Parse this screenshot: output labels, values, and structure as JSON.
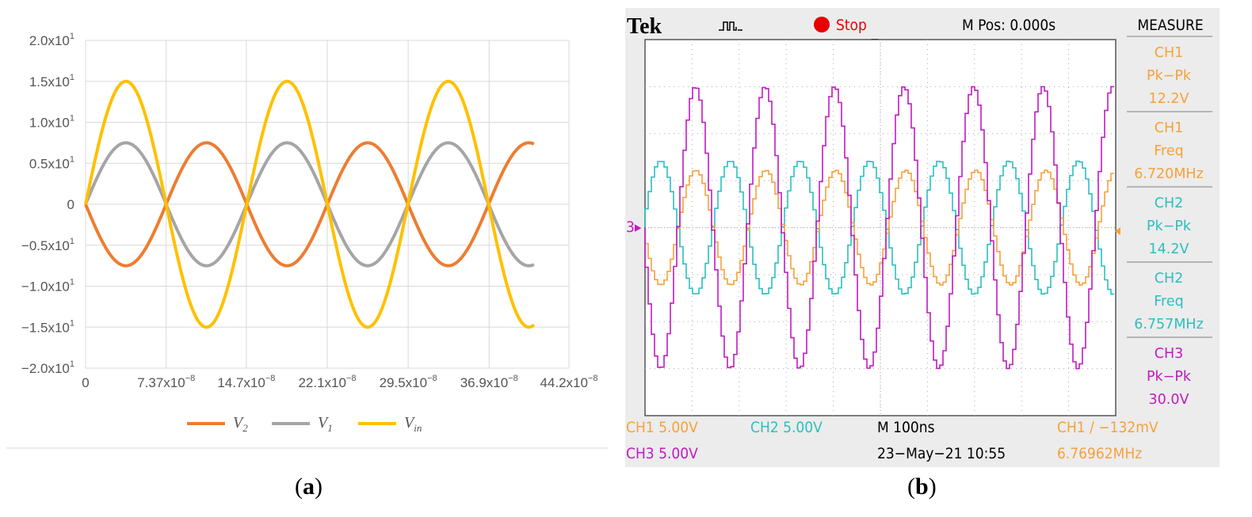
{
  "panels": {
    "a": {
      "caption_letter": "a"
    },
    "b": {
      "caption_letter": "b"
    }
  },
  "chart_data": [
    {
      "type": "line",
      "panel": "a",
      "x_range": [
        0,
        4.1e-07
      ],
      "xlim": [
        0,
        4.42e-07
      ],
      "ylim": [
        -20,
        20
      ],
      "grid": true,
      "legend_position": "bottom",
      "y_ticks": [
        {
          "value": 20,
          "mant": "2.0x10",
          "exp": "1"
        },
        {
          "value": 15,
          "mant": "1.5x10",
          "exp": "1"
        },
        {
          "value": 10,
          "mant": "1.0x10",
          "exp": "1"
        },
        {
          "value": 5,
          "mant": "0.5x10",
          "exp": "1"
        },
        {
          "value": 0,
          "mant": "0",
          "exp": ""
        },
        {
          "value": -5,
          "mant": "−0.5x10",
          "exp": "1"
        },
        {
          "value": -10,
          "mant": "−1.0x10",
          "exp": "1"
        },
        {
          "value": -15,
          "mant": "−1.5x10",
          "exp": "1"
        },
        {
          "value": -20,
          "mant": "−2.0x10",
          "exp": "1"
        }
      ],
      "x_ticks": [
        {
          "value": 0,
          "mant": "0",
          "exp": ""
        },
        {
          "value": 7.37e-08,
          "mant": "7.37x10",
          "exp": "−8"
        },
        {
          "value": 1.47e-07,
          "mant": "14.7x10",
          "exp": "−8"
        },
        {
          "value": 2.21e-07,
          "mant": "22.1x10",
          "exp": "−8"
        },
        {
          "value": 2.95e-07,
          "mant": "29.5x10",
          "exp": "−8"
        },
        {
          "value": 3.69e-07,
          "mant": "36.9x10",
          "exp": "−8"
        },
        {
          "value": 4.42e-07,
          "mant": "44.2x10",
          "exp": "−8"
        }
      ],
      "series": [
        {
          "name": "V",
          "subscript": "2",
          "color": "#ed7d31",
          "amplitude": -7.5,
          "period": 1.474e-07
        },
        {
          "name": "V",
          "subscript": "1",
          "color": "#a5a5a5",
          "amplitude": 7.5,
          "period": 1.474e-07
        },
        {
          "name": "V",
          "subscript": "in",
          "color": "#ffc000",
          "amplitude": 15,
          "period": 1.474e-07
        }
      ]
    },
    {
      "type": "line",
      "panel": "b",
      "divisions_x": 10,
      "divisions_y": 8,
      "grid": true,
      "series": [
        {
          "name": "CH1",
          "color": "#f7a13a",
          "amplitude_div": 1.22,
          "offset_div": 0,
          "period_div": 1.488,
          "phase": 3.14
        },
        {
          "name": "CH2",
          "color": "#2bbfbf",
          "amplitude_div": 1.42,
          "offset_div": 0,
          "period_div": 1.48,
          "phase": 0.0
        },
        {
          "name": "CH3",
          "color": "#c21ac2",
          "amplitude_div": 3.0,
          "offset_div": 0,
          "period_div": 1.477,
          "phase": 3.14
        }
      ]
    }
  ],
  "scope": {
    "logo": "Tek",
    "acq_label": "Stop",
    "mpos": "M Pos: 0.000s",
    "menu_title": "MEASURE",
    "channel_marker": "3",
    "colors": {
      "ch1": "#f7a13a",
      "ch2": "#2bbfbf",
      "ch3": "#c21ac2",
      "stop": "#e60000"
    },
    "measurements": [
      {
        "ch": "CH1",
        "type": "Pk−Pk",
        "value": "12.2V",
        "color": "#f7a13a"
      },
      {
        "ch": "CH1",
        "type": "Freq",
        "value": "6.720MHz",
        "color": "#f7a13a"
      },
      {
        "ch": "CH2",
        "type": "Pk−Pk",
        "value": "14.2V",
        "color": "#2bbfbf"
      },
      {
        "ch": "CH2",
        "type": "Freq",
        "value": "6.757MHz",
        "color": "#2bbfbf"
      },
      {
        "ch": "CH3",
        "type": "Pk−Pk",
        "value": "30.0V",
        "color": "#c21ac2"
      }
    ],
    "status": {
      "ch1_scale": "CH1  5.00V",
      "ch2_scale": "CH2  5.00V",
      "ch3_scale": "CH3  5.00V",
      "timebase": "M 100ns",
      "timestamp": "23−May−21 10:55",
      "trigger": "CH1 ∕ −132mV",
      "trigger_freq": "6.76962MHz"
    }
  }
}
